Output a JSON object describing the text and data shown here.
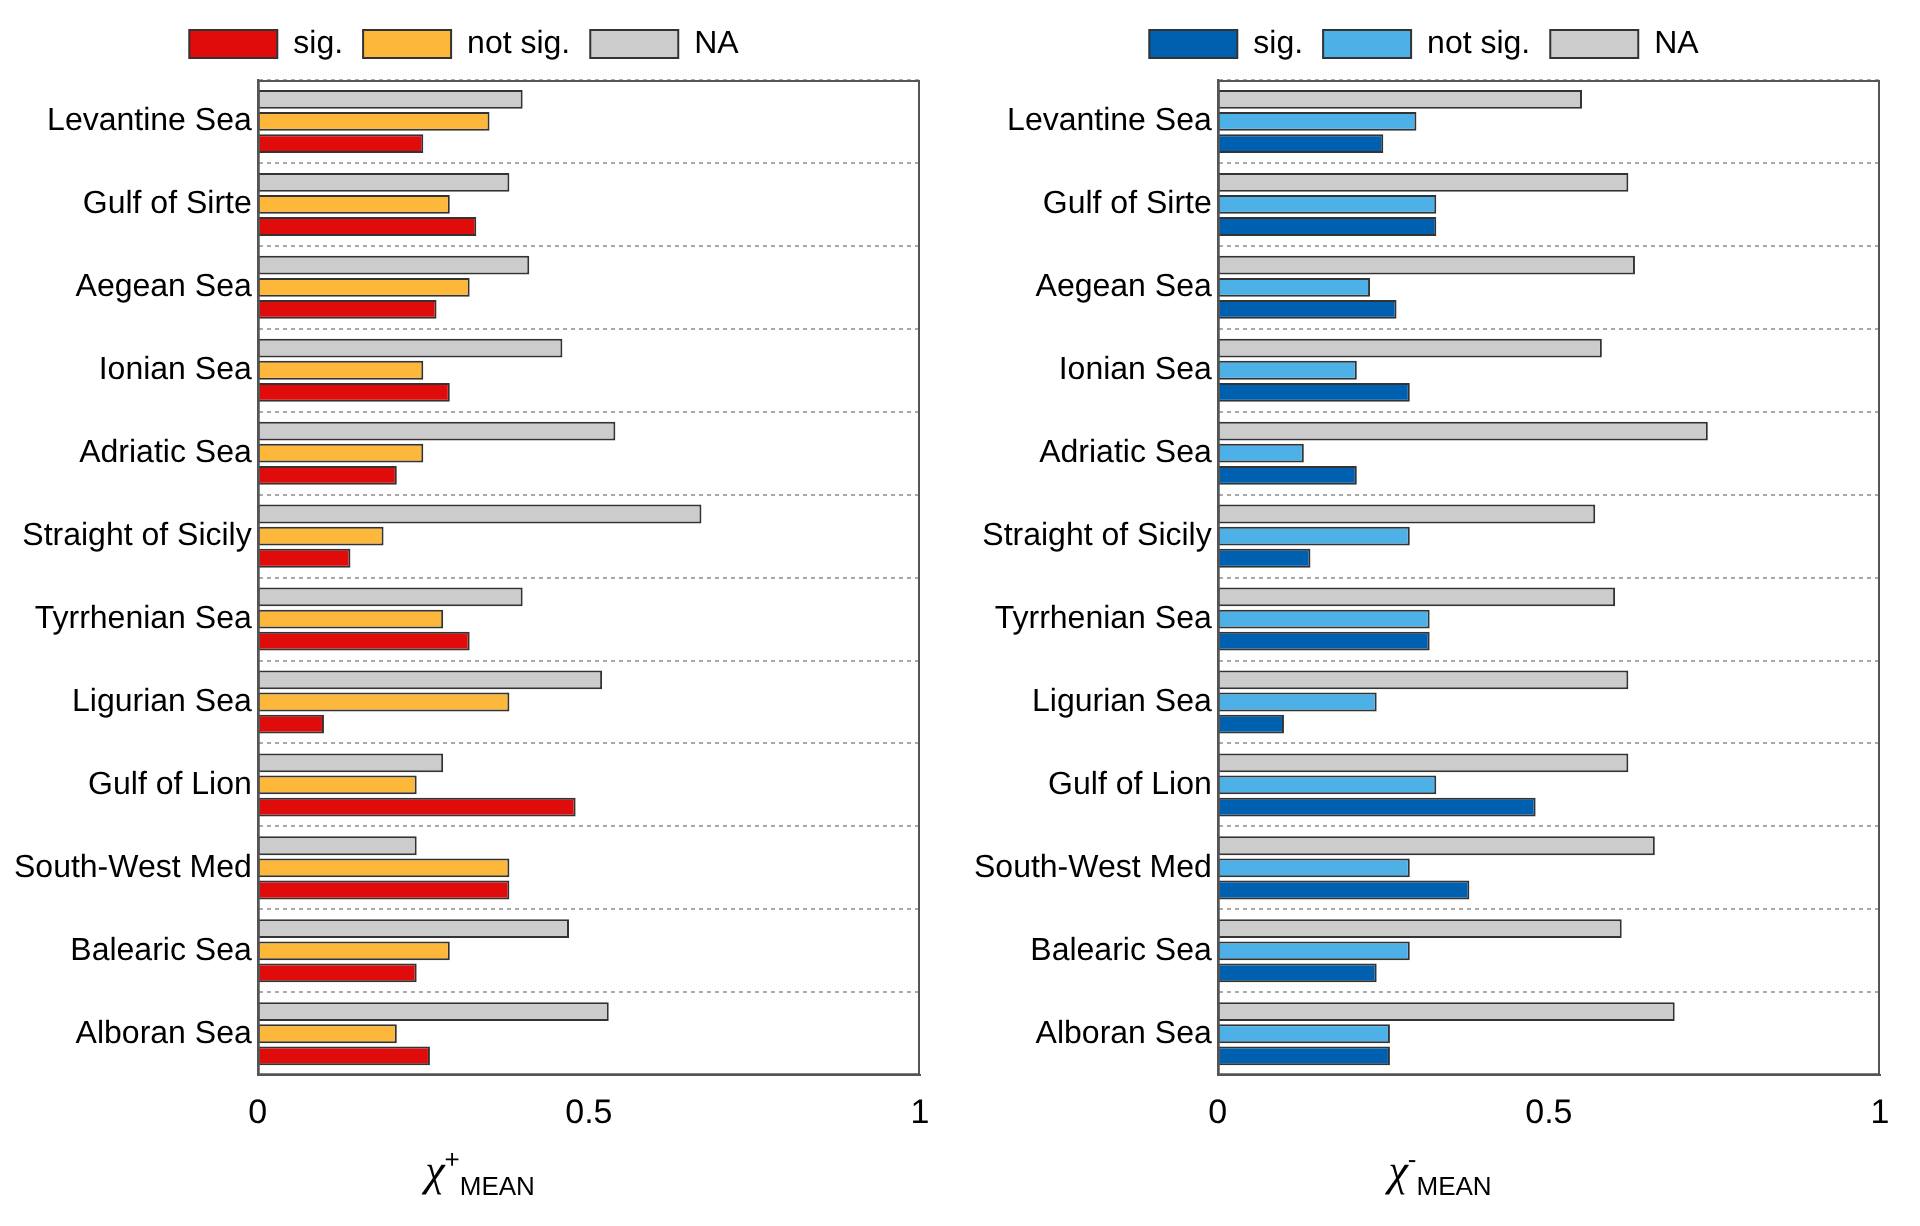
{
  "chart_data": [
    {
      "type": "bar",
      "orientation": "horizontal",
      "xlabel": "χ$^{+}$$_{MEAN}$",
      "categories": [
        "Levantine Sea",
        "Gulf of Sirte",
        "Aegean Sea",
        "Ionian Sea",
        "Adriatic Sea",
        "Straight of Sicily",
        "Tyrrhenian Sea",
        "Ligurian Sea",
        "Gulf of Lion",
        "South-West Med",
        "Balearic Sea",
        "Alboran Sea"
      ],
      "xlim": [
        0,
        1
      ],
      "xticks": [
        0,
        0.5,
        1
      ],
      "grid": "y",
      "legend": "top",
      "series": [
        {
          "name": "sig.",
          "color": "#e00c0c",
          "values": [
            0.25,
            0.33,
            0.27,
            0.29,
            0.21,
            0.14,
            0.32,
            0.1,
            0.48,
            0.38,
            0.24,
            0.26
          ]
        },
        {
          "name": "not sig.",
          "color": "#fdb73a",
          "values": [
            0.35,
            0.29,
            0.32,
            0.25,
            0.25,
            0.19,
            0.28,
            0.38,
            0.24,
            0.38,
            0.29,
            0.21
          ]
        },
        {
          "name": "NA",
          "color": "#cccccc",
          "values": [
            0.4,
            0.38,
            0.41,
            0.46,
            0.54,
            0.67,
            0.4,
            0.52,
            0.28,
            0.24,
            0.47,
            0.53
          ]
        }
      ]
    },
    {
      "type": "bar",
      "orientation": "horizontal",
      "xlabel": "χ$^{-}$$_{MEAN}$",
      "categories": [
        "Levantine Sea",
        "Gulf of Sirte",
        "Aegean Sea",
        "Ionian Sea",
        "Adriatic Sea",
        "Straight of Sicily",
        "Tyrrhenian Sea",
        "Ligurian Sea",
        "Gulf of Lion",
        "South-West Med",
        "Balearic Sea",
        "Alboran Sea"
      ],
      "xlim": [
        0,
        1
      ],
      "xticks": [
        0,
        0.5,
        1
      ],
      "grid": "y",
      "legend": "top",
      "series": [
        {
          "name": "sig.",
          "color": "#0060b0",
          "values": [
            0.25,
            0.33,
            0.27,
            0.29,
            0.21,
            0.14,
            0.32,
            0.1,
            0.48,
            0.38,
            0.24,
            0.26
          ]
        },
        {
          "name": "not sig.",
          "color": "#4db0e6",
          "values": [
            0.3,
            0.33,
            0.23,
            0.21,
            0.13,
            0.29,
            0.32,
            0.24,
            0.33,
            0.29,
            0.29,
            0.26
          ]
        },
        {
          "name": "NA",
          "color": "#cccccc",
          "values": [
            0.55,
            0.62,
            0.63,
            0.58,
            0.74,
            0.57,
            0.6,
            0.62,
            0.62,
            0.66,
            0.61,
            0.69
          ]
        }
      ]
    }
  ]
}
